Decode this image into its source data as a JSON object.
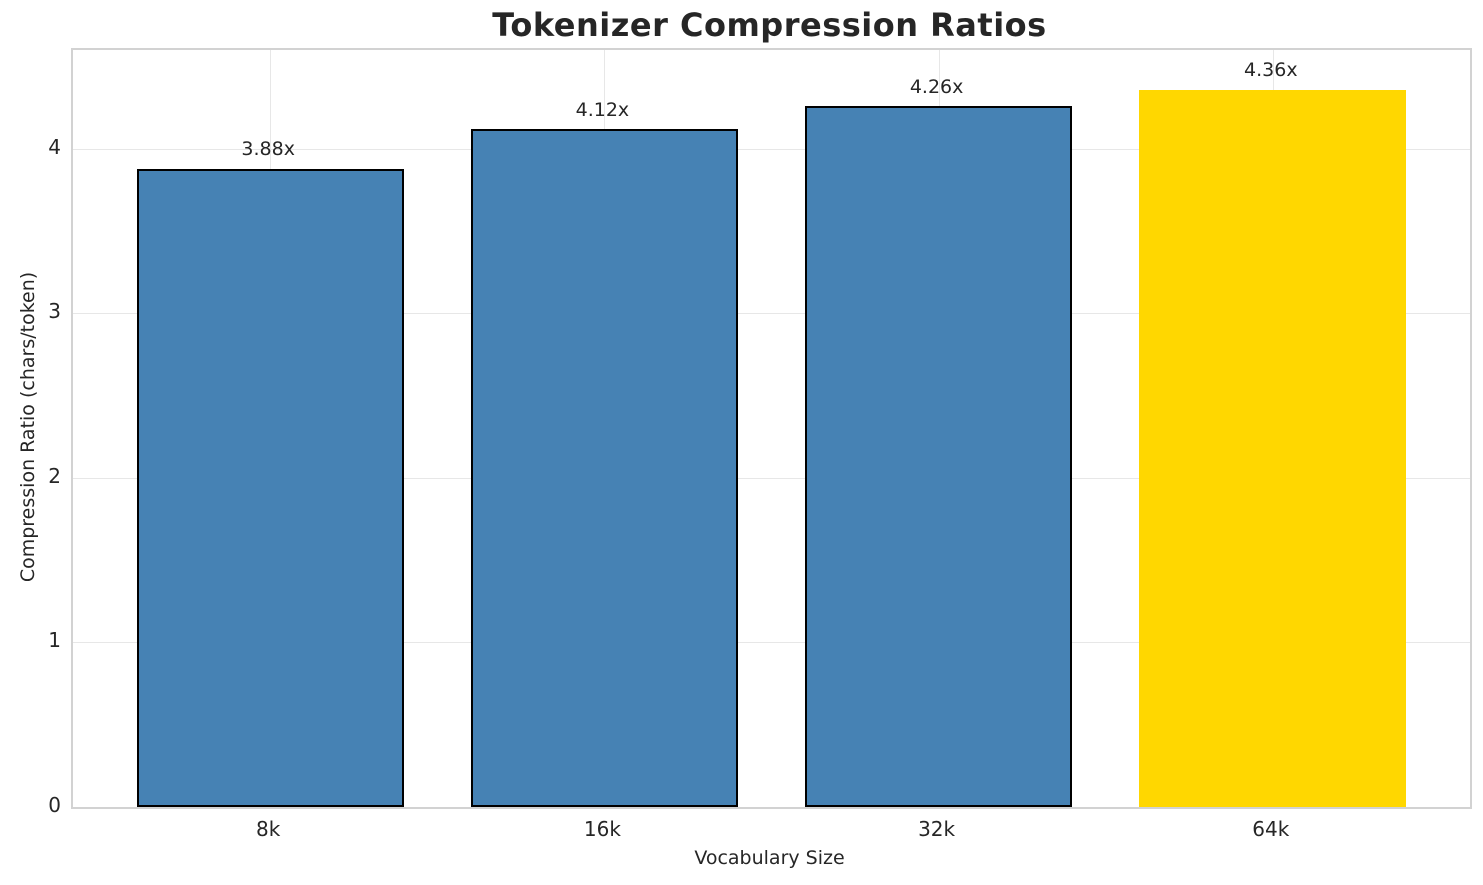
{
  "chart_data": {
    "type": "bar",
    "title": "Tokenizer Compression Ratios",
    "xlabel": "Vocabulary Size",
    "ylabel": "Compression Ratio (chars/token)",
    "categories": [
      "8k",
      "16k",
      "32k",
      "64k"
    ],
    "values": [
      3.88,
      4.12,
      4.26,
      4.36
    ],
    "bar_labels": [
      "3.88x",
      "4.12x",
      "4.26x",
      "4.36x"
    ],
    "bar_colors": [
      "#4682B4",
      "#4682B4",
      "#4682B4",
      "#FFD700"
    ],
    "bar_edge_colors": [
      "#000000",
      "#000000",
      "#000000",
      "none"
    ],
    "bar_width_units": 0.8,
    "ylim": [
      0,
      4.6
    ],
    "yticks": [
      0,
      1,
      2,
      3,
      4
    ],
    "xlim": [
      -0.59,
      3.59
    ],
    "grid": true,
    "legend": "none",
    "colors": {
      "background": "#ffffff",
      "text": "#262626",
      "spine": "#d2d2d2",
      "gridline": "#e7e7e7",
      "bar_primary": "#4682B4",
      "bar_highlight": "#FFD700",
      "bar_edge": "#000000"
    }
  }
}
